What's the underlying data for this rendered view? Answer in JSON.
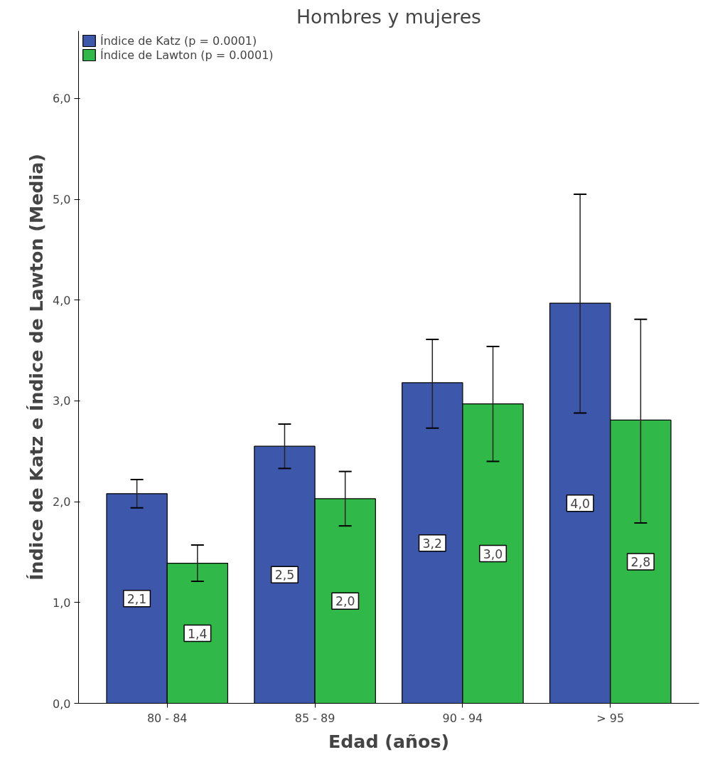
{
  "chart_data": {
    "type": "bar",
    "title": "Hombres y mujeres",
    "xlabel": "Edad (años)",
    "ylabel": "Índice de Katz e Índice de Lawton (Media)",
    "categories": [
      "80 - 84",
      "85 - 89",
      "90 - 94",
      "> 95"
    ],
    "series": [
      {
        "name": "Índice de Katz (p = 0.0001)",
        "color": "#3d57aa",
        "values": [
          2.08,
          2.55,
          3.18,
          3.97
        ],
        "errors": [
          [
            1.94,
            2.22
          ],
          [
            2.33,
            2.77
          ],
          [
            2.73,
            3.61
          ],
          [
            2.88,
            5.05
          ]
        ],
        "value_labels": [
          "2,1",
          "2,5",
          "3,2",
          "4,0"
        ]
      },
      {
        "name": "Índice de Lawton (p = 0.0001)",
        "color": "#30b848",
        "values": [
          1.39,
          2.03,
          2.97,
          2.81
        ],
        "errors": [
          [
            1.21,
            1.57
          ],
          [
            1.76,
            2.3
          ],
          [
            2.4,
            3.54
          ],
          [
            1.79,
            3.81
          ]
        ],
        "value_labels": [
          "1,4",
          "2,0",
          "3,0",
          "2,8"
        ]
      }
    ],
    "ylim": [
      0,
      6.67
    ],
    "yticks": [
      {
        "value": 0,
        "label": "0,0"
      },
      {
        "value": 1,
        "label": "1,0"
      },
      {
        "value": 2,
        "label": "2,0"
      },
      {
        "value": 3,
        "label": "3,0"
      },
      {
        "value": 4,
        "label": "4,0"
      },
      {
        "value": 5,
        "label": "5,0"
      },
      {
        "value": 6,
        "label": "6,0"
      }
    ],
    "grid": false,
    "legend": "top left"
  }
}
